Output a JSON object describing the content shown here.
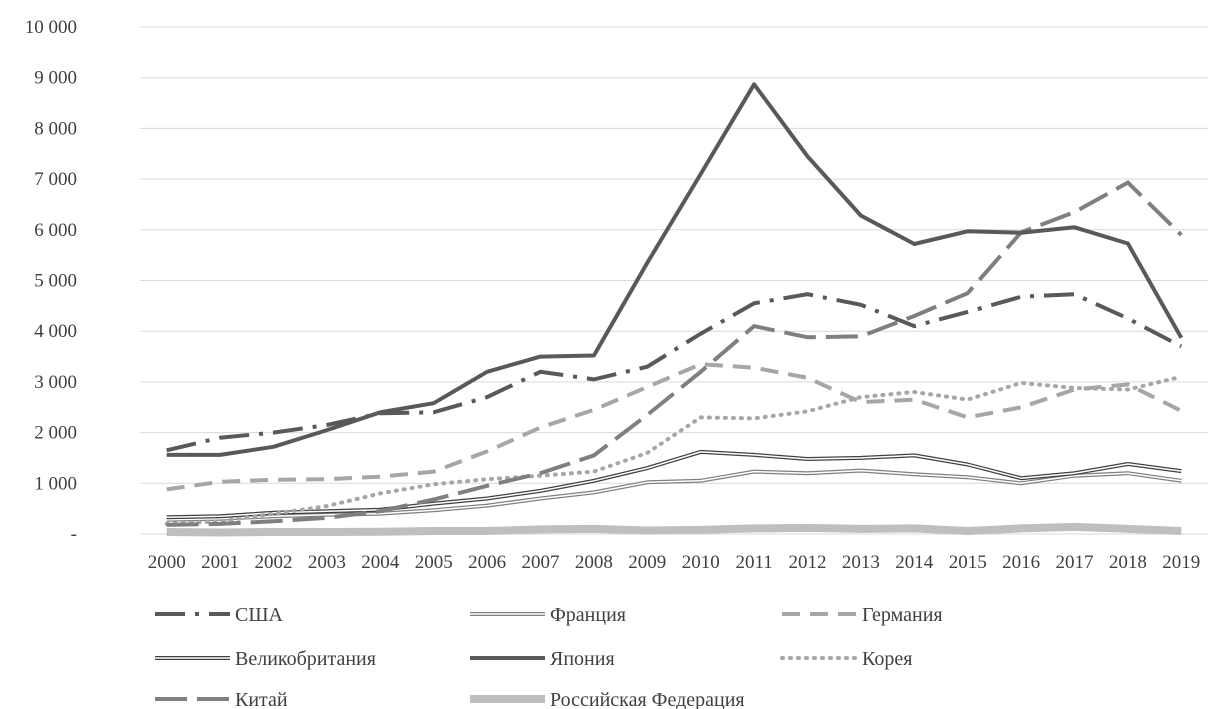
{
  "chart_data": {
    "type": "line",
    "title": "",
    "xlabel": "",
    "ylabel": "",
    "ylim": [
      0,
      10000
    ],
    "yticks": [
      0,
      1000,
      2000,
      3000,
      4000,
      5000,
      6000,
      7000,
      8000,
      9000,
      10000
    ],
    "ytick_labels": [
      "-",
      "1 000",
      "2 000",
      "3 000",
      "4 000",
      "5 000",
      "6 000",
      "7 000",
      "8 000",
      "9 000",
      "10 000"
    ],
    "grid": "horizontal",
    "legend_position": "bottom",
    "categories": [
      "2000",
      "2001",
      "2002",
      "2003",
      "2004",
      "2005",
      "2006",
      "2007",
      "2008",
      "2009",
      "2010",
      "2011",
      "2012",
      "2013",
      "2014",
      "2015",
      "2016",
      "2017",
      "2018",
      "2019"
    ],
    "series": [
      {
        "name": "США",
        "values": [
          1650,
          1900,
          2000,
          2150,
          2380,
          2400,
          2700,
          3200,
          3050,
          3300,
          3950,
          4550,
          4730,
          4520,
          4100,
          4380,
          4680,
          4730,
          4250,
          3700
        ],
        "color": "#595959",
        "style": "dash-dot"
      },
      {
        "name": "Франция",
        "values": [
          280,
          300,
          350,
          380,
          400,
          470,
          560,
          700,
          820,
          1020,
          1050,
          1230,
          1200,
          1250,
          1180,
          1120,
          1000,
          1150,
          1200,
          1050
        ],
        "color": "#808080",
        "style": "double"
      },
      {
        "name": "Германия",
        "values": [
          880,
          1030,
          1070,
          1080,
          1130,
          1230,
          1630,
          2100,
          2450,
          2900,
          3350,
          3280,
          3080,
          2600,
          2650,
          2300,
          2500,
          2850,
          2950,
          2430
        ],
        "color": "#a6a6a6",
        "style": "dash"
      },
      {
        "name": "Великобритания",
        "values": [
          330,
          350,
          420,
          450,
          480,
          600,
          700,
          850,
          1050,
          1300,
          1620,
          1560,
          1480,
          1500,
          1550,
          1370,
          1100,
          1200,
          1380,
          1240
        ],
        "color": "#404040",
        "style": "double"
      },
      {
        "name": "Япония",
        "values": [
          1560,
          1560,
          1720,
          2050,
          2400,
          2580,
          3200,
          3500,
          3520,
          5350,
          7100,
          8870,
          7450,
          6280,
          5720,
          5970,
          5940,
          6050,
          5730,
          3870
        ],
        "color": "#595959",
        "style": "solid"
      },
      {
        "name": "Корея",
        "values": [
          200,
          250,
          400,
          550,
          800,
          980,
          1080,
          1150,
          1230,
          1600,
          2300,
          2280,
          2420,
          2700,
          2800,
          2650,
          2980,
          2880,
          2850,
          3100
        ],
        "color": "#a6a6a6",
        "style": "dot"
      },
      {
        "name": "Китай",
        "values": [
          180,
          200,
          250,
          320,
          450,
          680,
          950,
          1200,
          1550,
          2350,
          3200,
          4100,
          3880,
          3900,
          4300,
          4750,
          5950,
          6350,
          6930,
          5900
        ],
        "color": "#7f7f7f",
        "style": "long-dash"
      },
      {
        "name": "Российская Федерация",
        "values": [
          40,
          30,
          40,
          40,
          45,
          60,
          60,
          90,
          100,
          70,
          80,
          110,
          120,
          100,
          110,
          60,
          110,
          140,
          100,
          60
        ],
        "color": "#bfbfbf",
        "style": "thick"
      }
    ]
  }
}
